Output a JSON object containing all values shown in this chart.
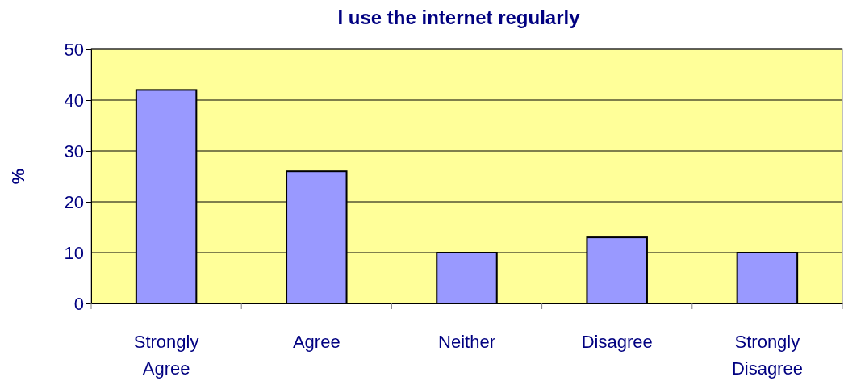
{
  "chart_data": {
    "type": "bar",
    "title": "I use the internet regularly",
    "ylabel": "%",
    "categories": [
      "Strongly Agree",
      "Agree",
      "Neither",
      "Disagree",
      "Strongly Disagree"
    ],
    "values": [
      42,
      26,
      10,
      13,
      10
    ],
    "color": "#9999ff",
    "ylim": [
      0,
      50
    ],
    "yticks": [
      0,
      10,
      20,
      30,
      40,
      50
    ],
    "grid": "y"
  }
}
